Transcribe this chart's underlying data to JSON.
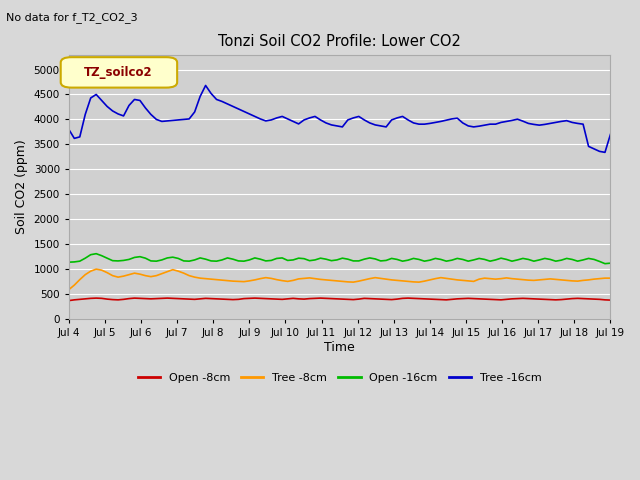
{
  "title": "Tonzi Soil CO2 Profile: Lower CO2",
  "subtitle": "No data for f_T2_CO2_3",
  "ylabel": "Soil CO2 (ppm)",
  "xlabel": "Time",
  "legend_label": "TZ_soilco2",
  "ylim": [
    0,
    5300
  ],
  "yticks": [
    0,
    500,
    1000,
    1500,
    2000,
    2500,
    3000,
    3500,
    4000,
    4500,
    5000
  ],
  "xtick_labels": [
    "Jul 4",
    "Jul 5",
    "Jul 6",
    "Jul 7",
    "Jul 8",
    "Jul 9",
    "Jul 10",
    "Jul 11",
    "Jul 12",
    "Jul 13",
    "Jul 14",
    "Jul 15",
    "Jul 16",
    "Jul 17",
    "Jul 18",
    "Jul 19"
  ],
  "background_color": "#d8d8d8",
  "plot_bg_color": "#d0d0d0",
  "series": {
    "open_8cm": {
      "color": "#cc0000",
      "label": "Open -8cm",
      "values": [
        370,
        385,
        395,
        405,
        415,
        420,
        415,
        400,
        390,
        385,
        395,
        410,
        420,
        415,
        410,
        405,
        410,
        415,
        420,
        415,
        410,
        405,
        400,
        395,
        405,
        415,
        410,
        405,
        400,
        395,
        390,
        395,
        410,
        415,
        420,
        415,
        410,
        405,
        400,
        395,
        405,
        415,
        405,
        400,
        410,
        415,
        420,
        415,
        410,
        405,
        400,
        395,
        390,
        400,
        415,
        410,
        405,
        400,
        395,
        390,
        400,
        415,
        420,
        415,
        410,
        405,
        400,
        395,
        390,
        385,
        395,
        405,
        410,
        415,
        410,
        405,
        400,
        395,
        390,
        385,
        395,
        405,
        410,
        415,
        410,
        405,
        400,
        395,
        390,
        385,
        390,
        400,
        410,
        415,
        410,
        405,
        400,
        395,
        385,
        380
      ]
    },
    "tree_8cm": {
      "color": "#ff9900",
      "label": "Tree -8cm",
      "values": [
        590,
        680,
        790,
        890,
        960,
        1000,
        980,
        930,
        870,
        840,
        860,
        890,
        920,
        900,
        870,
        850,
        870,
        910,
        950,
        990,
        960,
        920,
        870,
        840,
        820,
        810,
        800,
        790,
        780,
        770,
        760,
        755,
        750,
        765,
        785,
        810,
        830,
        815,
        790,
        770,
        755,
        775,
        805,
        815,
        825,
        810,
        795,
        785,
        775,
        765,
        755,
        745,
        740,
        760,
        785,
        810,
        830,
        815,
        800,
        785,
        775,
        765,
        755,
        745,
        740,
        760,
        785,
        810,
        830,
        815,
        800,
        785,
        775,
        765,
        755,
        800,
        820,
        810,
        800,
        810,
        825,
        810,
        800,
        790,
        780,
        775,
        785,
        795,
        805,
        795,
        785,
        775,
        765,
        760,
        775,
        785,
        800,
        810,
        820,
        820
      ]
    },
    "open_16cm": {
      "color": "#00bb00",
      "label": "Open -16cm",
      "values": [
        1140,
        1145,
        1160,
        1220,
        1290,
        1310,
        1270,
        1220,
        1170,
        1165,
        1175,
        1195,
        1235,
        1250,
        1220,
        1165,
        1160,
        1185,
        1225,
        1240,
        1215,
        1165,
        1160,
        1185,
        1225,
        1200,
        1165,
        1160,
        1185,
        1225,
        1200,
        1165,
        1160,
        1185,
        1225,
        1200,
        1165,
        1175,
        1215,
        1225,
        1175,
        1185,
        1220,
        1210,
        1170,
        1185,
        1220,
        1200,
        1170,
        1185,
        1220,
        1200,
        1165,
        1165,
        1200,
        1225,
        1205,
        1165,
        1175,
        1215,
        1195,
        1160,
        1180,
        1215,
        1195,
        1160,
        1180,
        1215,
        1195,
        1160,
        1180,
        1215,
        1195,
        1160,
        1185,
        1215,
        1195,
        1160,
        1185,
        1220,
        1195,
        1160,
        1185,
        1215,
        1195,
        1160,
        1185,
        1215,
        1195,
        1160,
        1180,
        1215,
        1195,
        1160,
        1185,
        1215,
        1195,
        1155,
        1110,
        1120
      ]
    },
    "tree_16cm": {
      "color": "#0000cc",
      "label": "Tree -16cm",
      "values": [
        3800,
        3620,
        3650,
        4100,
        4430,
        4500,
        4380,
        4260,
        4170,
        4110,
        4070,
        4280,
        4400,
        4380,
        4230,
        4100,
        4000,
        3960,
        3970,
        3980,
        3990,
        4000,
        4010,
        4150,
        4460,
        4680,
        4520,
        4400,
        4360,
        4310,
        4260,
        4210,
        4160,
        4110,
        4060,
        4010,
        3970,
        3990,
        4030,
        4060,
        4010,
        3960,
        3910,
        3990,
        4030,
        4060,
        3990,
        3930,
        3890,
        3870,
        3850,
        3990,
        4030,
        4060,
        3990,
        3930,
        3890,
        3870,
        3850,
        3990,
        4030,
        4060,
        3990,
        3930,
        3905,
        3905,
        3920,
        3940,
        3960,
        3985,
        4010,
        4025,
        3930,
        3870,
        3850,
        3865,
        3885,
        3905,
        3905,
        3940,
        3960,
        3980,
        4005,
        3965,
        3920,
        3900,
        3885,
        3900,
        3920,
        3940,
        3960,
        3975,
        3940,
        3920,
        3905,
        3460,
        3410,
        3360,
        3340,
        3700
      ]
    }
  }
}
